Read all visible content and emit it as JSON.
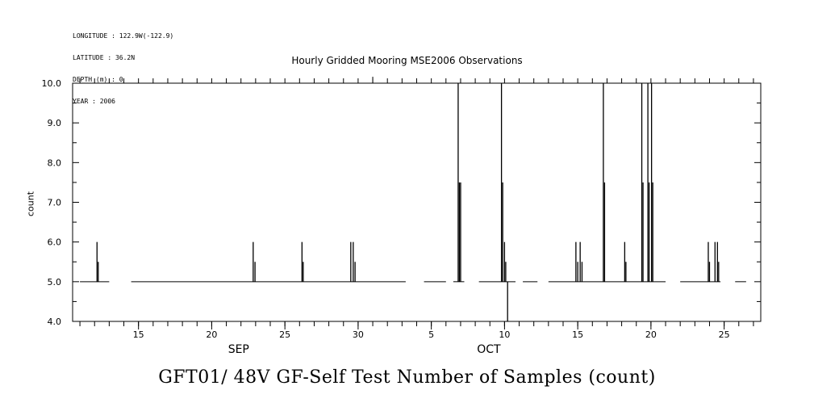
{
  "header": {
    "lines": [
      "LONGITUDE : 122.9W(-122.9)",
      "LATITUDE : 36.2N",
      "DEPTH (m) : 0",
      "YEAR : 2006"
    ],
    "title": "Hourly Gridded Mooring MSE2006 Observations"
  },
  "caption": "GFT01/ 48V GF-Self Test Number of Samples (count)",
  "chart_data": {
    "type": "line",
    "title": "Hourly Gridded Mooring MSE2006 Observations",
    "ylabel": "count",
    "xlabel": "",
    "ylim": [
      4.0,
      10.0
    ],
    "xlim": [
      "2006-09-10T12:00",
      "2006-10-27T12:00"
    ],
    "y_ticks": [
      "4.0",
      "5.0",
      "6.0",
      "7.0",
      "8.0",
      "9.0",
      "10.0"
    ],
    "x_ticks": [
      {
        "date": "2006-09-15",
        "label": "15"
      },
      {
        "date": "2006-09-20",
        "label": "20"
      },
      {
        "date": "2006-09-25",
        "label": "25"
      },
      {
        "date": "2006-09-30",
        "label": "30"
      },
      {
        "date": "2006-10-05",
        "label": "5"
      },
      {
        "date": "2006-10-10",
        "label": "10"
      },
      {
        "date": "2006-10-15",
        "label": "15"
      },
      {
        "date": "2006-10-20",
        "label": "20"
      },
      {
        "date": "2006-10-25",
        "label": "25"
      }
    ],
    "month_labels": [
      {
        "date": "2006-09-22",
        "label": "SEP"
      },
      {
        "date": "2006-10-09",
        "label": "OCT"
      }
    ],
    "baseline": 5.0,
    "segments": [
      {
        "start": "2006-09-11T00:00",
        "end": "2006-09-13T00:00"
      },
      {
        "start": "2006-09-14T12:00",
        "end": "2006-10-03T06:00"
      },
      {
        "start": "2006-10-04T12:00",
        "end": "2006-10-06T00:00"
      },
      {
        "start": "2006-10-06T12:00",
        "end": "2006-10-07T06:00"
      },
      {
        "start": "2006-10-08T06:00",
        "end": "2006-10-10T18:00"
      },
      {
        "start": "2006-10-11T06:00",
        "end": "2006-10-12T06:00"
      },
      {
        "start": "2006-10-13T00:00",
        "end": "2006-10-21T00:00"
      },
      {
        "start": "2006-10-22T00:00",
        "end": "2006-10-24T18:00"
      },
      {
        "start": "2006-10-25T18:00",
        "end": "2006-10-26T12:00"
      }
    ],
    "spikes": [
      {
        "t": "2006-09-12T04:00",
        "y": 6.0
      },
      {
        "t": "2006-09-12T06:00",
        "y": 5.5
      },
      {
        "t": "2006-09-22T20:00",
        "y": 6.0
      },
      {
        "t": "2006-09-22T23:00",
        "y": 5.5
      },
      {
        "t": "2006-09-26T04:00",
        "y": 6.0
      },
      {
        "t": "2006-09-26T06:00",
        "y": 5.5
      },
      {
        "t": "2006-09-29T12:00",
        "y": 6.0
      },
      {
        "t": "2006-09-29T16:00",
        "y": 6.0
      },
      {
        "t": "2006-09-29T19:00",
        "y": 5.5
      },
      {
        "t": "2006-10-06T20:00",
        "y": 10.0
      },
      {
        "t": "2006-10-06T22:00",
        "y": 7.5
      },
      {
        "t": "2006-10-07T00:00",
        "y": 7.5
      },
      {
        "t": "2006-10-09T19:00",
        "y": 10.0
      },
      {
        "t": "2006-10-09T21:00",
        "y": 7.5
      },
      {
        "t": "2006-10-10T00:00",
        "y": 6.0
      },
      {
        "t": "2006-10-10T02:00",
        "y": 5.5
      },
      {
        "t": "2006-10-10T05:00",
        "y": 4.0
      },
      {
        "t": "2006-10-14T21:00",
        "y": 6.0
      },
      {
        "t": "2006-10-15T00:00",
        "y": 5.5
      },
      {
        "t": "2006-10-15T04:00",
        "y": 6.0
      },
      {
        "t": "2006-10-15T07:00",
        "y": 5.5
      },
      {
        "t": "2006-10-16T18:00",
        "y": 10.0
      },
      {
        "t": "2006-10-16T20:00",
        "y": 7.5
      },
      {
        "t": "2006-10-18T05:00",
        "y": 6.0
      },
      {
        "t": "2006-10-18T07:00",
        "y": 5.5
      },
      {
        "t": "2006-10-19T09:00",
        "y": 10.0
      },
      {
        "t": "2006-10-19T11:00",
        "y": 7.5
      },
      {
        "t": "2006-10-19T19:00",
        "y": 10.0
      },
      {
        "t": "2006-10-19T21:00",
        "y": 7.5
      },
      {
        "t": "2006-10-20T01:00",
        "y": 10.0
      },
      {
        "t": "2006-10-20T03:00",
        "y": 7.5
      },
      {
        "t": "2006-10-23T22:00",
        "y": 6.0
      },
      {
        "t": "2006-10-24T00:00",
        "y": 5.5
      },
      {
        "t": "2006-10-24T09:00",
        "y": 6.0
      },
      {
        "t": "2006-10-24T13:00",
        "y": 6.0
      },
      {
        "t": "2006-10-24T15:00",
        "y": 5.5
      }
    ]
  }
}
